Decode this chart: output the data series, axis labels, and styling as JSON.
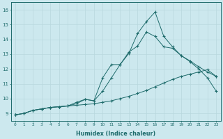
{
  "xlabel": "Humidex (Indice chaleur)",
  "ylabel": "",
  "xlim": [
    -0.5,
    23.5
  ],
  "ylim": [
    8.5,
    16.5
  ],
  "xticks": [
    0,
    1,
    2,
    3,
    4,
    5,
    6,
    7,
    8,
    9,
    10,
    11,
    12,
    13,
    14,
    15,
    16,
    17,
    18,
    19,
    20,
    21,
    22,
    23
  ],
  "yticks": [
    9,
    10,
    11,
    12,
    13,
    14,
    15,
    16
  ],
  "bg_color": "#cce8ee",
  "grid_color": "#b8d8de",
  "line_color": "#1e6b6b",
  "line1_x": [
    0,
    1,
    2,
    3,
    4,
    5,
    6,
    7,
    8,
    9,
    10,
    11,
    12,
    13,
    14,
    15,
    16,
    17,
    18,
    19,
    20,
    21,
    22,
    23
  ],
  "line1_y": [
    8.9,
    9.0,
    9.2,
    9.3,
    9.4,
    9.45,
    9.5,
    9.55,
    9.6,
    9.65,
    9.75,
    9.85,
    10.0,
    10.15,
    10.35,
    10.55,
    10.8,
    11.05,
    11.3,
    11.5,
    11.65,
    11.8,
    11.95,
    11.5
  ],
  "line2_x": [
    0,
    1,
    2,
    3,
    4,
    5,
    6,
    7,
    8,
    9,
    10,
    11,
    12,
    13,
    14,
    15,
    16,
    17,
    18,
    19,
    20,
    21,
    22,
    23
  ],
  "line2_y": [
    8.9,
    9.0,
    9.2,
    9.3,
    9.4,
    9.45,
    9.5,
    9.65,
    9.95,
    9.85,
    10.5,
    11.4,
    12.3,
    13.15,
    13.55,
    14.5,
    14.2,
    13.5,
    13.4,
    12.9,
    12.5,
    12.0,
    11.4,
    10.5
  ],
  "line3_x": [
    0,
    1,
    2,
    3,
    4,
    5,
    6,
    7,
    8,
    9,
    10,
    11,
    12,
    13,
    14,
    15,
    16,
    17,
    18,
    19,
    20,
    21,
    22,
    23
  ],
  "line3_y": [
    8.9,
    9.0,
    9.2,
    9.3,
    9.4,
    9.45,
    9.5,
    9.75,
    9.95,
    9.85,
    11.4,
    12.3,
    12.3,
    13.05,
    14.4,
    15.2,
    15.85,
    14.2,
    13.5,
    12.9,
    12.55,
    12.15,
    11.8,
    11.5
  ]
}
